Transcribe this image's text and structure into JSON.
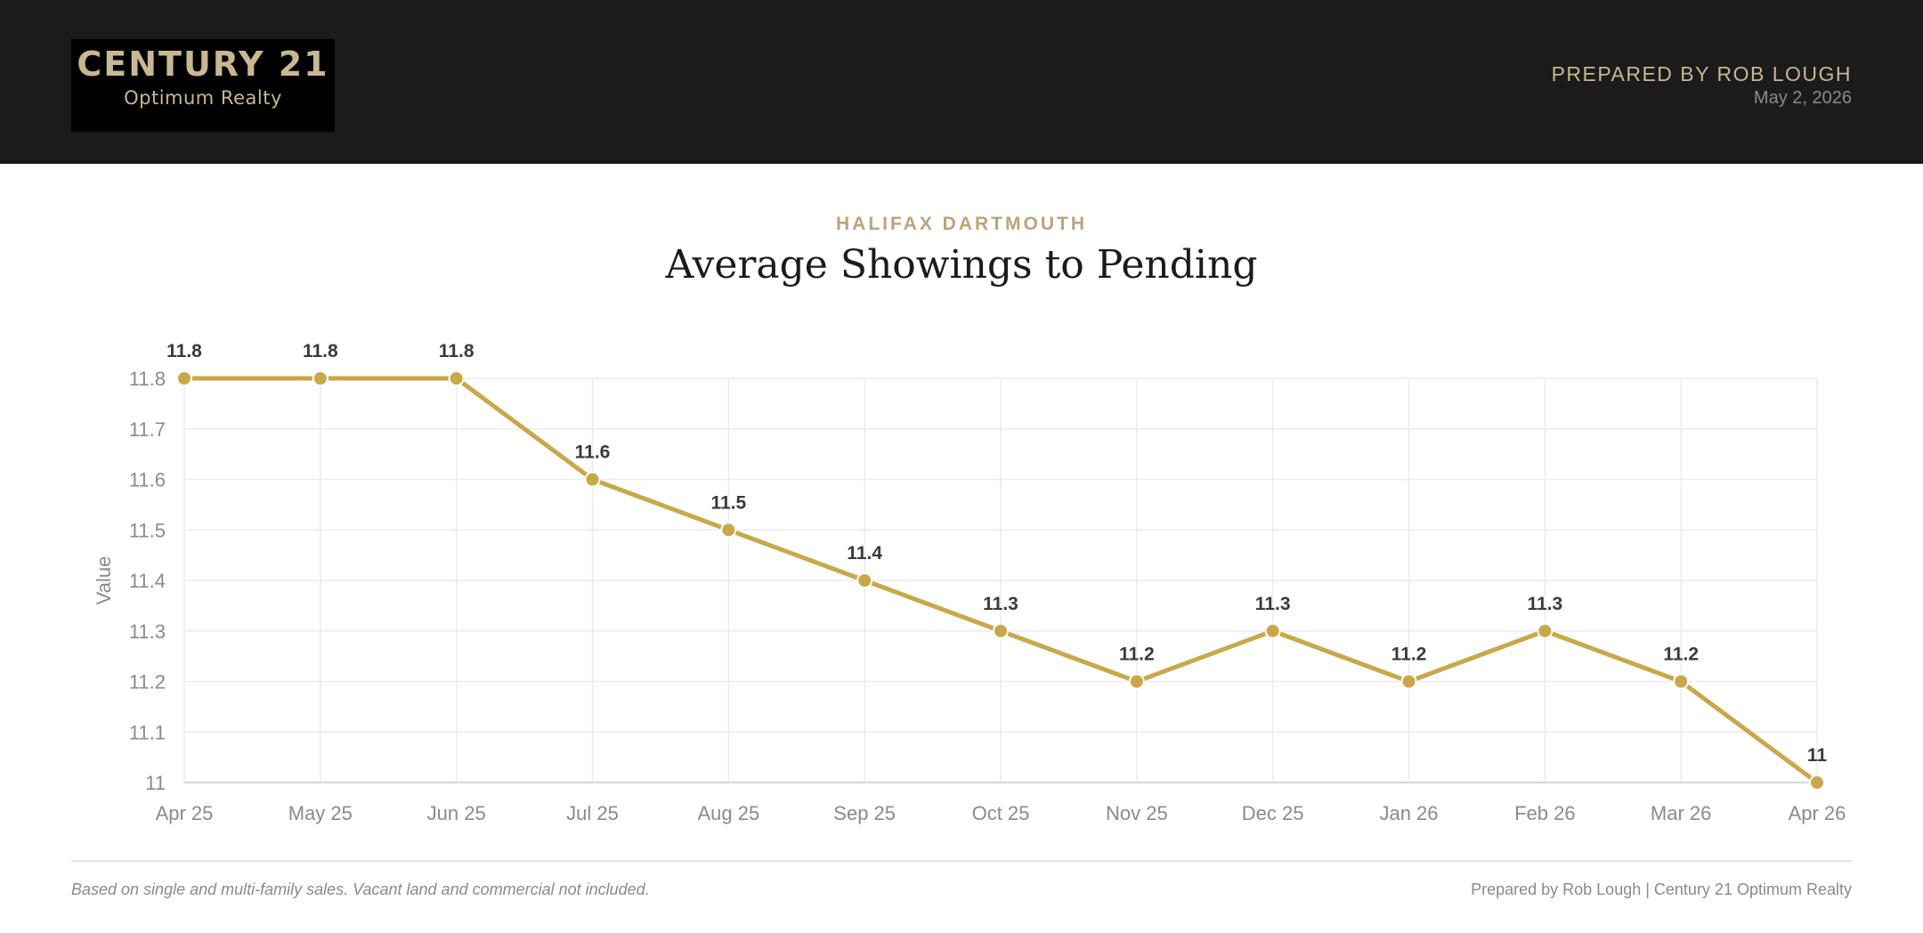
{
  "header": {
    "logo": {
      "brand": "CENTURY 21",
      "sub": "Optimum Realty"
    },
    "prepared_by": "PREPARED BY ROB LOUGH",
    "date": "May 2, 2026"
  },
  "chart_data": {
    "type": "line",
    "subtitle": "HALIFAX DARTMOUTH",
    "title": "Average Showings to Pending",
    "xlabel": "",
    "ylabel": "Value",
    "categories": [
      "Apr 25",
      "May 25",
      "Jun 25",
      "Jul 25",
      "Aug 25",
      "Sep 25",
      "Oct 25",
      "Nov 25",
      "Dec 25",
      "Jan 26",
      "Feb 26",
      "Mar 26",
      "Apr 26"
    ],
    "values": [
      11.8,
      11.8,
      11.8,
      11.6,
      11.5,
      11.4,
      11.3,
      11.2,
      11.3,
      11.2,
      11.3,
      11.2,
      11
    ],
    "ylim": [
      11,
      11.8
    ],
    "yticks": [
      "11",
      "11.1",
      "11.2",
      "11.3",
      "11.4",
      "11.5",
      "11.6",
      "11.7",
      "11.8"
    ],
    "grid": true,
    "line_color": "#c9a84a"
  },
  "footer": {
    "note": "Based on single and multi-family sales. Vacant land and commercial not included.",
    "credit": "Prepared by Rob Lough | Century 21 Optimum Realty"
  }
}
